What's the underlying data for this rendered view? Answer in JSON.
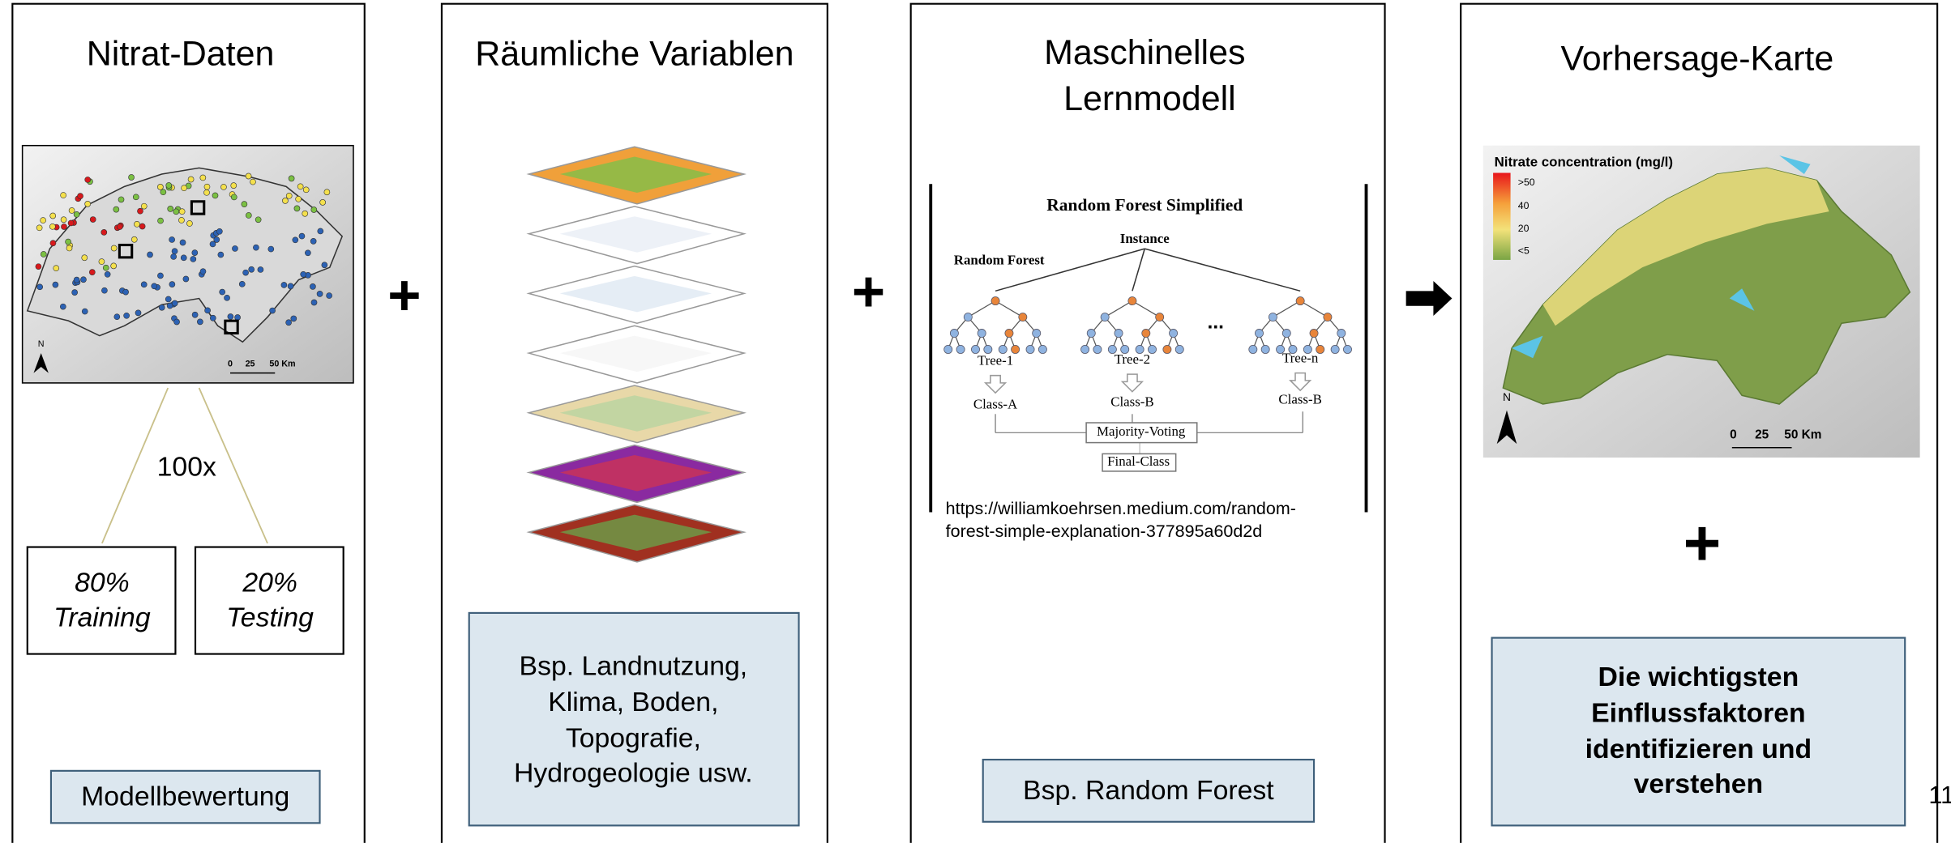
{
  "panels": [
    {
      "title": [
        "Nitrat-Daten"
      ],
      "map": {
        "north": "N",
        "scale": [
          "0",
          "25",
          "50 Km"
        ]
      },
      "repeat": "100x",
      "splits": [
        {
          "percent": "80%",
          "label": "Training"
        },
        {
          "percent": "20%",
          "label": "Testing"
        }
      ],
      "footer": [
        "Modellbewertung"
      ]
    },
    {
      "title": [
        "Räumliche Variablen"
      ],
      "footer": [
        "Bsp. Landnutzung,",
        "Klima, Boden,",
        "Topografie,",
        "Hydrogeologie usw."
      ]
    },
    {
      "title": [
        "Maschinelles",
        "Lernmodell"
      ],
      "diagram": {
        "title": "Random Forest Simplified",
        "instance": "Instance",
        "label": "Random Forest",
        "trees": [
          {
            "name": "Tree-1",
            "class": "Class-A"
          },
          {
            "name": "Tree-2",
            "class": "Class-B"
          },
          {
            "name": "Tree-n",
            "class": "Class-B"
          }
        ],
        "ellipsis": "...",
        "voting": "Majority-Voting",
        "final": "Final-Class"
      },
      "source": [
        "https://williamkoehrsen.medium.com/random-",
        "forest-simple-explanation-377895a60d2d"
      ],
      "footer": [
        "Bsp. Random Forest"
      ]
    },
    {
      "title": [
        "Vorhersage-Karte"
      ],
      "map": {
        "legend_title": "Nitrate concentration (mg/l)",
        "legend": [
          ">50",
          "40",
          "20",
          "<5"
        ],
        "north": "N",
        "scale": [
          "0",
          "25",
          "50 Km"
        ]
      },
      "plus": "+",
      "footer": [
        "Die wichtigsten",
        "Einflussfaktoren",
        "identifizieren und",
        "verstehen"
      ]
    }
  ],
  "operators": [
    "+",
    "+"
  ],
  "page_number": "11"
}
